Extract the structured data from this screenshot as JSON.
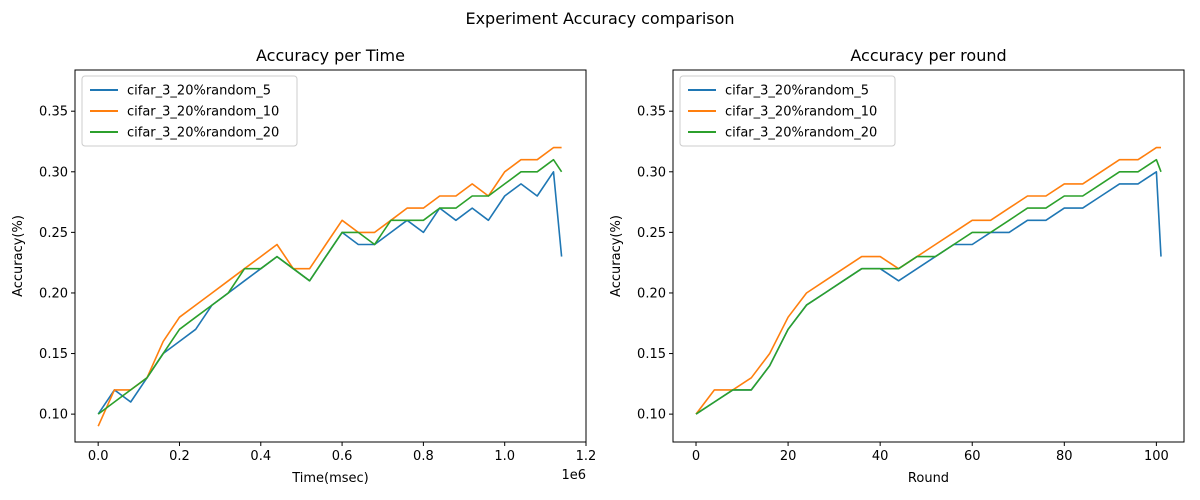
{
  "figure": {
    "suptitle": "Experiment Accuracy comparison"
  },
  "chart_data": [
    {
      "type": "line",
      "title": "Accuracy per Time",
      "xlabel": "Time(msec)",
      "ylabel": "Accuracy(%)",
      "x_offset_label": "1e6",
      "xlim": [
        -0.057,
        1.2
      ],
      "ylim": [
        0.077,
        0.384
      ],
      "xticks": [
        0.0,
        0.2,
        0.4,
        0.6,
        0.8,
        1.0,
        1.2
      ],
      "xtick_labels": [
        "0.0",
        "0.2",
        "0.4",
        "0.6",
        "0.8",
        "1.0",
        "1.2"
      ],
      "yticks": [
        0.1,
        0.15,
        0.2,
        0.25,
        0.3,
        0.35
      ],
      "ytick_labels": [
        "0.10",
        "0.15",
        "0.20",
        "0.25",
        "0.30",
        "0.35"
      ],
      "legend": "top-left",
      "grid": false,
      "series": [
        {
          "name": "cifar_3_20%random_5",
          "color": "#1f77b4",
          "x": [
            0.0,
            0.04,
            0.08,
            0.12,
            0.16,
            0.2,
            0.24,
            0.28,
            0.32,
            0.36,
            0.4,
            0.44,
            0.48,
            0.52,
            0.56,
            0.6,
            0.64,
            0.68,
            0.72,
            0.76,
            0.8,
            0.84,
            0.88,
            0.92,
            0.96,
            1.0,
            1.04,
            1.08,
            1.12,
            1.14
          ],
          "y": [
            0.1,
            0.12,
            0.11,
            0.13,
            0.15,
            0.16,
            0.17,
            0.19,
            0.2,
            0.21,
            0.22,
            0.23,
            0.22,
            0.21,
            0.23,
            0.25,
            0.24,
            0.24,
            0.25,
            0.26,
            0.25,
            0.27,
            0.26,
            0.27,
            0.26,
            0.28,
            0.29,
            0.28,
            0.3,
            0.23
          ]
        },
        {
          "name": "cifar_3_20%random_10",
          "color": "#ff7f0e",
          "x": [
            0.0,
            0.04,
            0.08,
            0.12,
            0.16,
            0.2,
            0.24,
            0.28,
            0.32,
            0.36,
            0.4,
            0.44,
            0.48,
            0.52,
            0.56,
            0.6,
            0.64,
            0.68,
            0.72,
            0.76,
            0.8,
            0.84,
            0.88,
            0.92,
            0.96,
            1.0,
            1.04,
            1.08,
            1.12,
            1.14
          ],
          "y": [
            0.09,
            0.12,
            0.12,
            0.13,
            0.16,
            0.18,
            0.19,
            0.2,
            0.21,
            0.22,
            0.23,
            0.24,
            0.22,
            0.22,
            0.24,
            0.26,
            0.25,
            0.25,
            0.26,
            0.27,
            0.27,
            0.28,
            0.28,
            0.29,
            0.28,
            0.3,
            0.31,
            0.31,
            0.32,
            0.32
          ]
        },
        {
          "name": "cifar_3_20%random_20",
          "color": "#2ca02c",
          "x": [
            0.0,
            0.04,
            0.08,
            0.12,
            0.16,
            0.2,
            0.24,
            0.28,
            0.32,
            0.36,
            0.4,
            0.44,
            0.48,
            0.52,
            0.56,
            0.6,
            0.64,
            0.68,
            0.72,
            0.76,
            0.8,
            0.84,
            0.88,
            0.92,
            0.96,
            1.0,
            1.04,
            1.08,
            1.12,
            1.14
          ],
          "y": [
            0.1,
            0.11,
            0.12,
            0.13,
            0.15,
            0.17,
            0.18,
            0.19,
            0.2,
            0.22,
            0.22,
            0.23,
            0.22,
            0.21,
            0.23,
            0.25,
            0.25,
            0.24,
            0.26,
            0.26,
            0.26,
            0.27,
            0.27,
            0.28,
            0.28,
            0.29,
            0.3,
            0.3,
            0.31,
            0.3
          ]
        }
      ]
    },
    {
      "type": "line",
      "title": "Accuracy per round",
      "xlabel": "Round",
      "ylabel": "Accuracy(%)",
      "xlim": [
        -5,
        106
      ],
      "ylim": [
        0.077,
        0.384
      ],
      "xticks": [
        0,
        20,
        40,
        60,
        80,
        100
      ],
      "xtick_labels": [
        "0",
        "20",
        "40",
        "60",
        "80",
        "100"
      ],
      "yticks": [
        0.1,
        0.15,
        0.2,
        0.25,
        0.3,
        0.35
      ],
      "ytick_labels": [
        "0.10",
        "0.15",
        "0.20",
        "0.25",
        "0.30",
        "0.35"
      ],
      "legend": "top-left",
      "grid": false,
      "series": [
        {
          "name": "cifar_3_20%random_5",
          "color": "#1f77b4",
          "x": [
            0,
            4,
            8,
            12,
            16,
            20,
            24,
            28,
            32,
            36,
            40,
            44,
            48,
            52,
            56,
            60,
            64,
            68,
            72,
            76,
            80,
            84,
            88,
            92,
            96,
            100,
            101
          ],
          "y": [
            0.1,
            0.11,
            0.12,
            0.12,
            0.14,
            0.17,
            0.19,
            0.2,
            0.21,
            0.22,
            0.22,
            0.21,
            0.22,
            0.23,
            0.24,
            0.24,
            0.25,
            0.25,
            0.26,
            0.26,
            0.27,
            0.27,
            0.28,
            0.29,
            0.29,
            0.3,
            0.23
          ]
        },
        {
          "name": "cifar_3_20%random_10",
          "color": "#ff7f0e",
          "x": [
            0,
            4,
            8,
            12,
            16,
            20,
            24,
            28,
            32,
            36,
            40,
            44,
            48,
            52,
            56,
            60,
            64,
            68,
            72,
            76,
            80,
            84,
            88,
            92,
            96,
            100,
            101
          ],
          "y": [
            0.1,
            0.12,
            0.12,
            0.13,
            0.15,
            0.18,
            0.2,
            0.21,
            0.22,
            0.23,
            0.23,
            0.22,
            0.23,
            0.24,
            0.25,
            0.26,
            0.26,
            0.27,
            0.28,
            0.28,
            0.29,
            0.29,
            0.3,
            0.31,
            0.31,
            0.32,
            0.32
          ]
        },
        {
          "name": "cifar_3_20%random_20",
          "color": "#2ca02c",
          "x": [
            0,
            4,
            8,
            12,
            16,
            20,
            24,
            28,
            32,
            36,
            40,
            44,
            48,
            52,
            56,
            60,
            64,
            68,
            72,
            76,
            80,
            84,
            88,
            92,
            96,
            100,
            101
          ],
          "y": [
            0.1,
            0.11,
            0.12,
            0.12,
            0.14,
            0.17,
            0.19,
            0.2,
            0.21,
            0.22,
            0.22,
            0.22,
            0.23,
            0.23,
            0.24,
            0.25,
            0.25,
            0.26,
            0.27,
            0.27,
            0.28,
            0.28,
            0.29,
            0.3,
            0.3,
            0.31,
            0.3
          ]
        }
      ]
    }
  ]
}
